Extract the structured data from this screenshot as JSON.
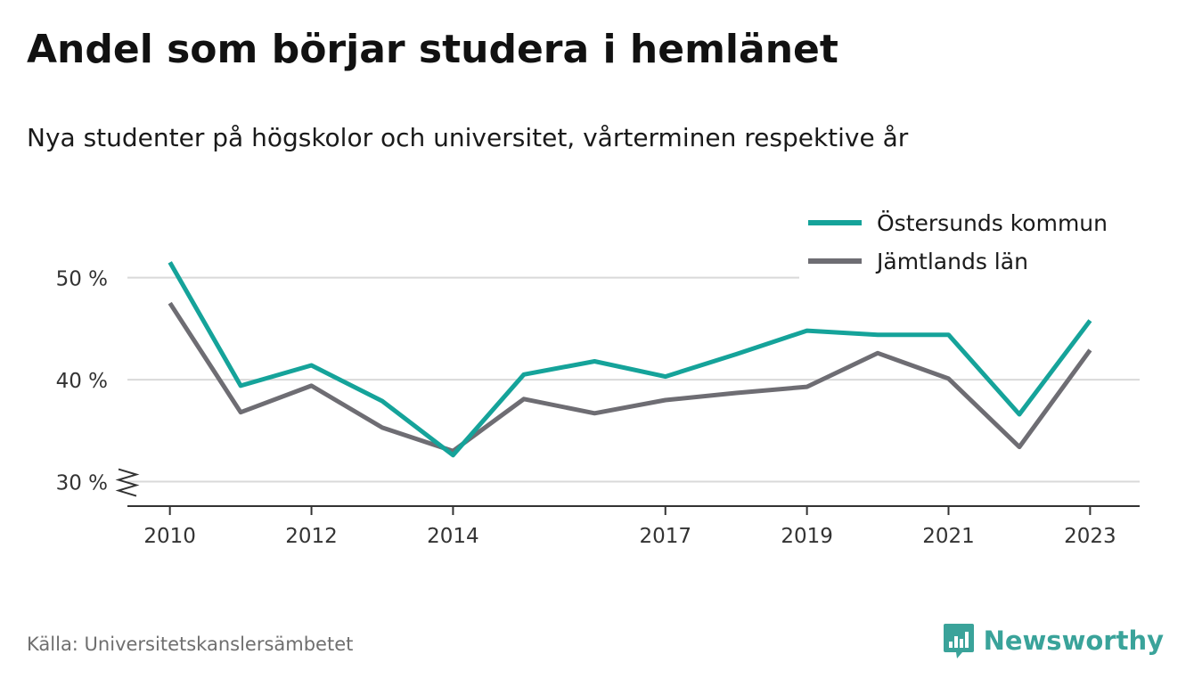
{
  "header": {
    "title": "Andel som börjar studera i hemlänet",
    "subtitle": "Nya studenter på högskolor och universitet, vårterminen respektive år"
  },
  "footer": {
    "source": "Källa: Universitetskanslersämbetet",
    "brand": "Newsworthy",
    "brand_icon": "bar-chart-speech-bubble-icon"
  },
  "colors": {
    "series_1": "#15a39a",
    "series_2": "#6e6d73",
    "grid": "#d9d9d9",
    "axis": "#333333",
    "brand": "#3aa39a"
  },
  "chart_data": {
    "type": "line",
    "title": "Andel som börjar studera i hemlänet",
    "subtitle": "Nya studenter på högskolor och universitet, vårterminen respektive år",
    "xlabel": "",
    "ylabel": "",
    "x": [
      2010,
      2011,
      2012,
      2013,
      2014,
      2015,
      2016,
      2017,
      2018,
      2019,
      2020,
      2021,
      2022,
      2023
    ],
    "xticks": [
      "2010",
      "2012",
      "2014",
      "2017",
      "2019",
      "2021",
      "2023"
    ],
    "xlim": [
      2009.4,
      2023.7
    ],
    "ylim": [
      27.6,
      52.5
    ],
    "yticks": [
      {
        "value": 30,
        "label": "30 %"
      },
      {
        "value": 40,
        "label": "40 %"
      },
      {
        "value": 50,
        "label": "50 %"
      }
    ],
    "y_axis_break": true,
    "grid": true,
    "legend_position": "top-right",
    "series": [
      {
        "name": "Östersunds kommun",
        "color": "#15a39a",
        "values": [
          51.5,
          39.4,
          41.4,
          37.9,
          32.6,
          40.5,
          41.8,
          40.3,
          42.5,
          44.8,
          44.4,
          44.4,
          36.6,
          45.8
        ]
      },
      {
        "name": "Jämtlands län",
        "color": "#6e6d73",
        "values": [
          47.5,
          36.8,
          39.4,
          35.3,
          33.0,
          38.1,
          36.7,
          38.0,
          38.7,
          39.3,
          42.6,
          40.1,
          33.4,
          42.9
        ]
      }
    ]
  }
}
